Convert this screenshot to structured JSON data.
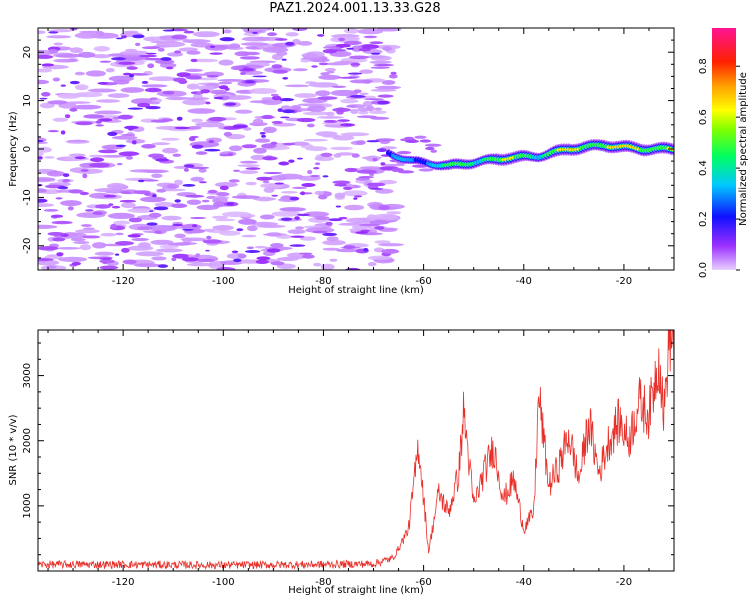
{
  "title": "PAZ1.2024.001.13.33.G28",
  "colors": {
    "snr_line": "#e8302a",
    "axes": "#000000"
  },
  "chart_data": [
    {
      "type": "heatmap",
      "title": "PAZ1.2024.001.13.33.G28",
      "xlabel": "Height of straight line (km)",
      "ylabel": "Frequency (Hz)",
      "xlim": [
        -137,
        -10
      ],
      "ylim": [
        -25,
        25
      ],
      "xticks": [
        -120,
        -100,
        -80,
        -60,
        -40,
        -20
      ],
      "yticks": [
        -20,
        -10,
        0,
        10,
        20
      ],
      "colorbar": {
        "label": "Normalized spectral amplitude",
        "range": [
          0.0,
          0.95
        ],
        "ticks": [
          "0.0",
          "0.2",
          "0.4",
          "0.6",
          "0.8"
        ],
        "colormap": "rainbow (purple-blue-cyan-green-yellow-red-magenta)"
      },
      "description_values": {
        "noise_region_x": [
          -137,
          -65
        ],
        "noise_amplitude": [
          0.0,
          0.3
        ],
        "signal_ridge": [
          {
            "x": -67,
            "freq": -1.0,
            "amp": 0.3
          },
          {
            "x": -62,
            "freq": -2.5,
            "amp": 0.4
          },
          {
            "x": -55,
            "freq": -3.5,
            "amp": 0.5
          },
          {
            "x": -48,
            "freq": -2.5,
            "amp": 0.65
          },
          {
            "x": -43,
            "freq": -1.8,
            "amp": 0.7
          },
          {
            "x": -37,
            "freq": -1.5,
            "amp": 0.6
          },
          {
            "x": -31,
            "freq": 0.0,
            "amp": 0.75
          },
          {
            "x": -24,
            "freq": 0.8,
            "amp": 0.8
          },
          {
            "x": -16,
            "freq": 0.0,
            "amp": 0.8
          },
          {
            "x": -11,
            "freq": 0.0,
            "amp": 0.75
          }
        ]
      }
    },
    {
      "type": "line",
      "xlabel": "Height of straight line (km)",
      "ylabel": "SNR (10 * v/v)",
      "xlim": [
        -137,
        -10
      ],
      "ylim": [
        0,
        3700
      ],
      "xticks": [
        -120,
        -100,
        -80,
        -60,
        -40,
        -20
      ],
      "yticks": [
        1000,
        2000,
        3000
      ],
      "series": [
        {
          "points": [
            [
              -137,
              100
            ],
            [
              -120,
              100
            ],
            [
              -100,
              90
            ],
            [
              -80,
              100
            ],
            [
              -70,
              110
            ],
            [
              -66,
              200
            ],
            [
              -63,
              650
            ],
            [
              -61,
              1950
            ],
            [
              -59,
              300
            ],
            [
              -57,
              1200
            ],
            [
              -55,
              900
            ],
            [
              -53,
              1500
            ],
            [
              -52,
              2450
            ],
            [
              -50,
              1000
            ],
            [
              -48,
              1500
            ],
            [
              -46,
              1900
            ],
            [
              -44,
              1100
            ],
            [
              -42,
              1400
            ],
            [
              -40,
              650
            ],
            [
              -38,
              900
            ],
            [
              -37,
              2700
            ],
            [
              -35,
              1300
            ],
            [
              -33,
              1600
            ],
            [
              -31,
              2100
            ],
            [
              -29,
              1400
            ],
            [
              -27,
              2300
            ],
            [
              -25,
              1500
            ],
            [
              -23,
              2000
            ],
            [
              -21,
              2300
            ],
            [
              -19,
              2000
            ],
            [
              -17,
              2600
            ],
            [
              -15,
              2400
            ],
            [
              -13,
              3300
            ],
            [
              -12,
              2400
            ],
            [
              -11,
              3550
            ],
            [
              -10,
              3650
            ]
          ]
        }
      ]
    }
  ]
}
